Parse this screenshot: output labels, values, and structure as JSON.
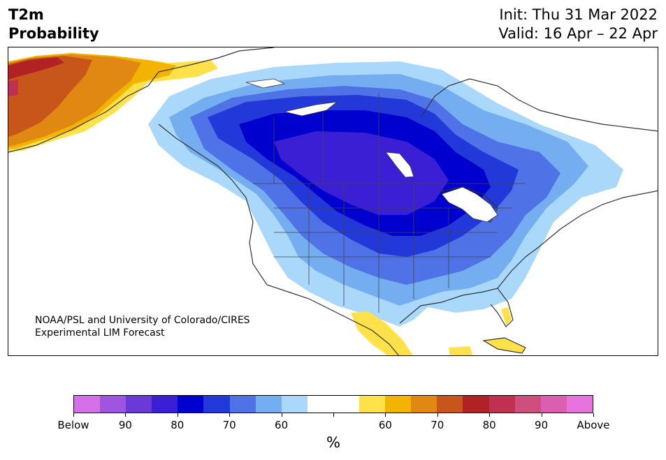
{
  "header": {
    "title_line1": "T2m",
    "title_line2": "Probability",
    "init": "Init: Thu 31 Mar 2022",
    "valid": "Valid: 16 Apr – 22 Apr"
  },
  "credit": {
    "line1": "NOAA/PSL and University of Colorado/CIRES",
    "line2": "Experimental LIM Forecast"
  },
  "colorbar": {
    "colors": [
      "#d670e8",
      "#9f55e0",
      "#6a3ad9",
      "#3a1fd4",
      "#0000cf",
      "#2238d8",
      "#4f72e6",
      "#74aef0",
      "#a9d8fa",
      "#ffffff",
      "#ffffff",
      "#ffe14a",
      "#f2b400",
      "#e08812",
      "#c8561a",
      "#b02224",
      "#c03050",
      "#d04e7e",
      "#dc5eb0",
      "#e872de"
    ],
    "labels": [
      "Below",
      "90",
      "80",
      "70",
      "60",
      "",
      "60",
      "70",
      "80",
      "90",
      "Above"
    ],
    "units": "%"
  },
  "map": {
    "ocean_color": "#ffffff",
    "land_color": "#ffffff",
    "coast_color": "#333333"
  }
}
